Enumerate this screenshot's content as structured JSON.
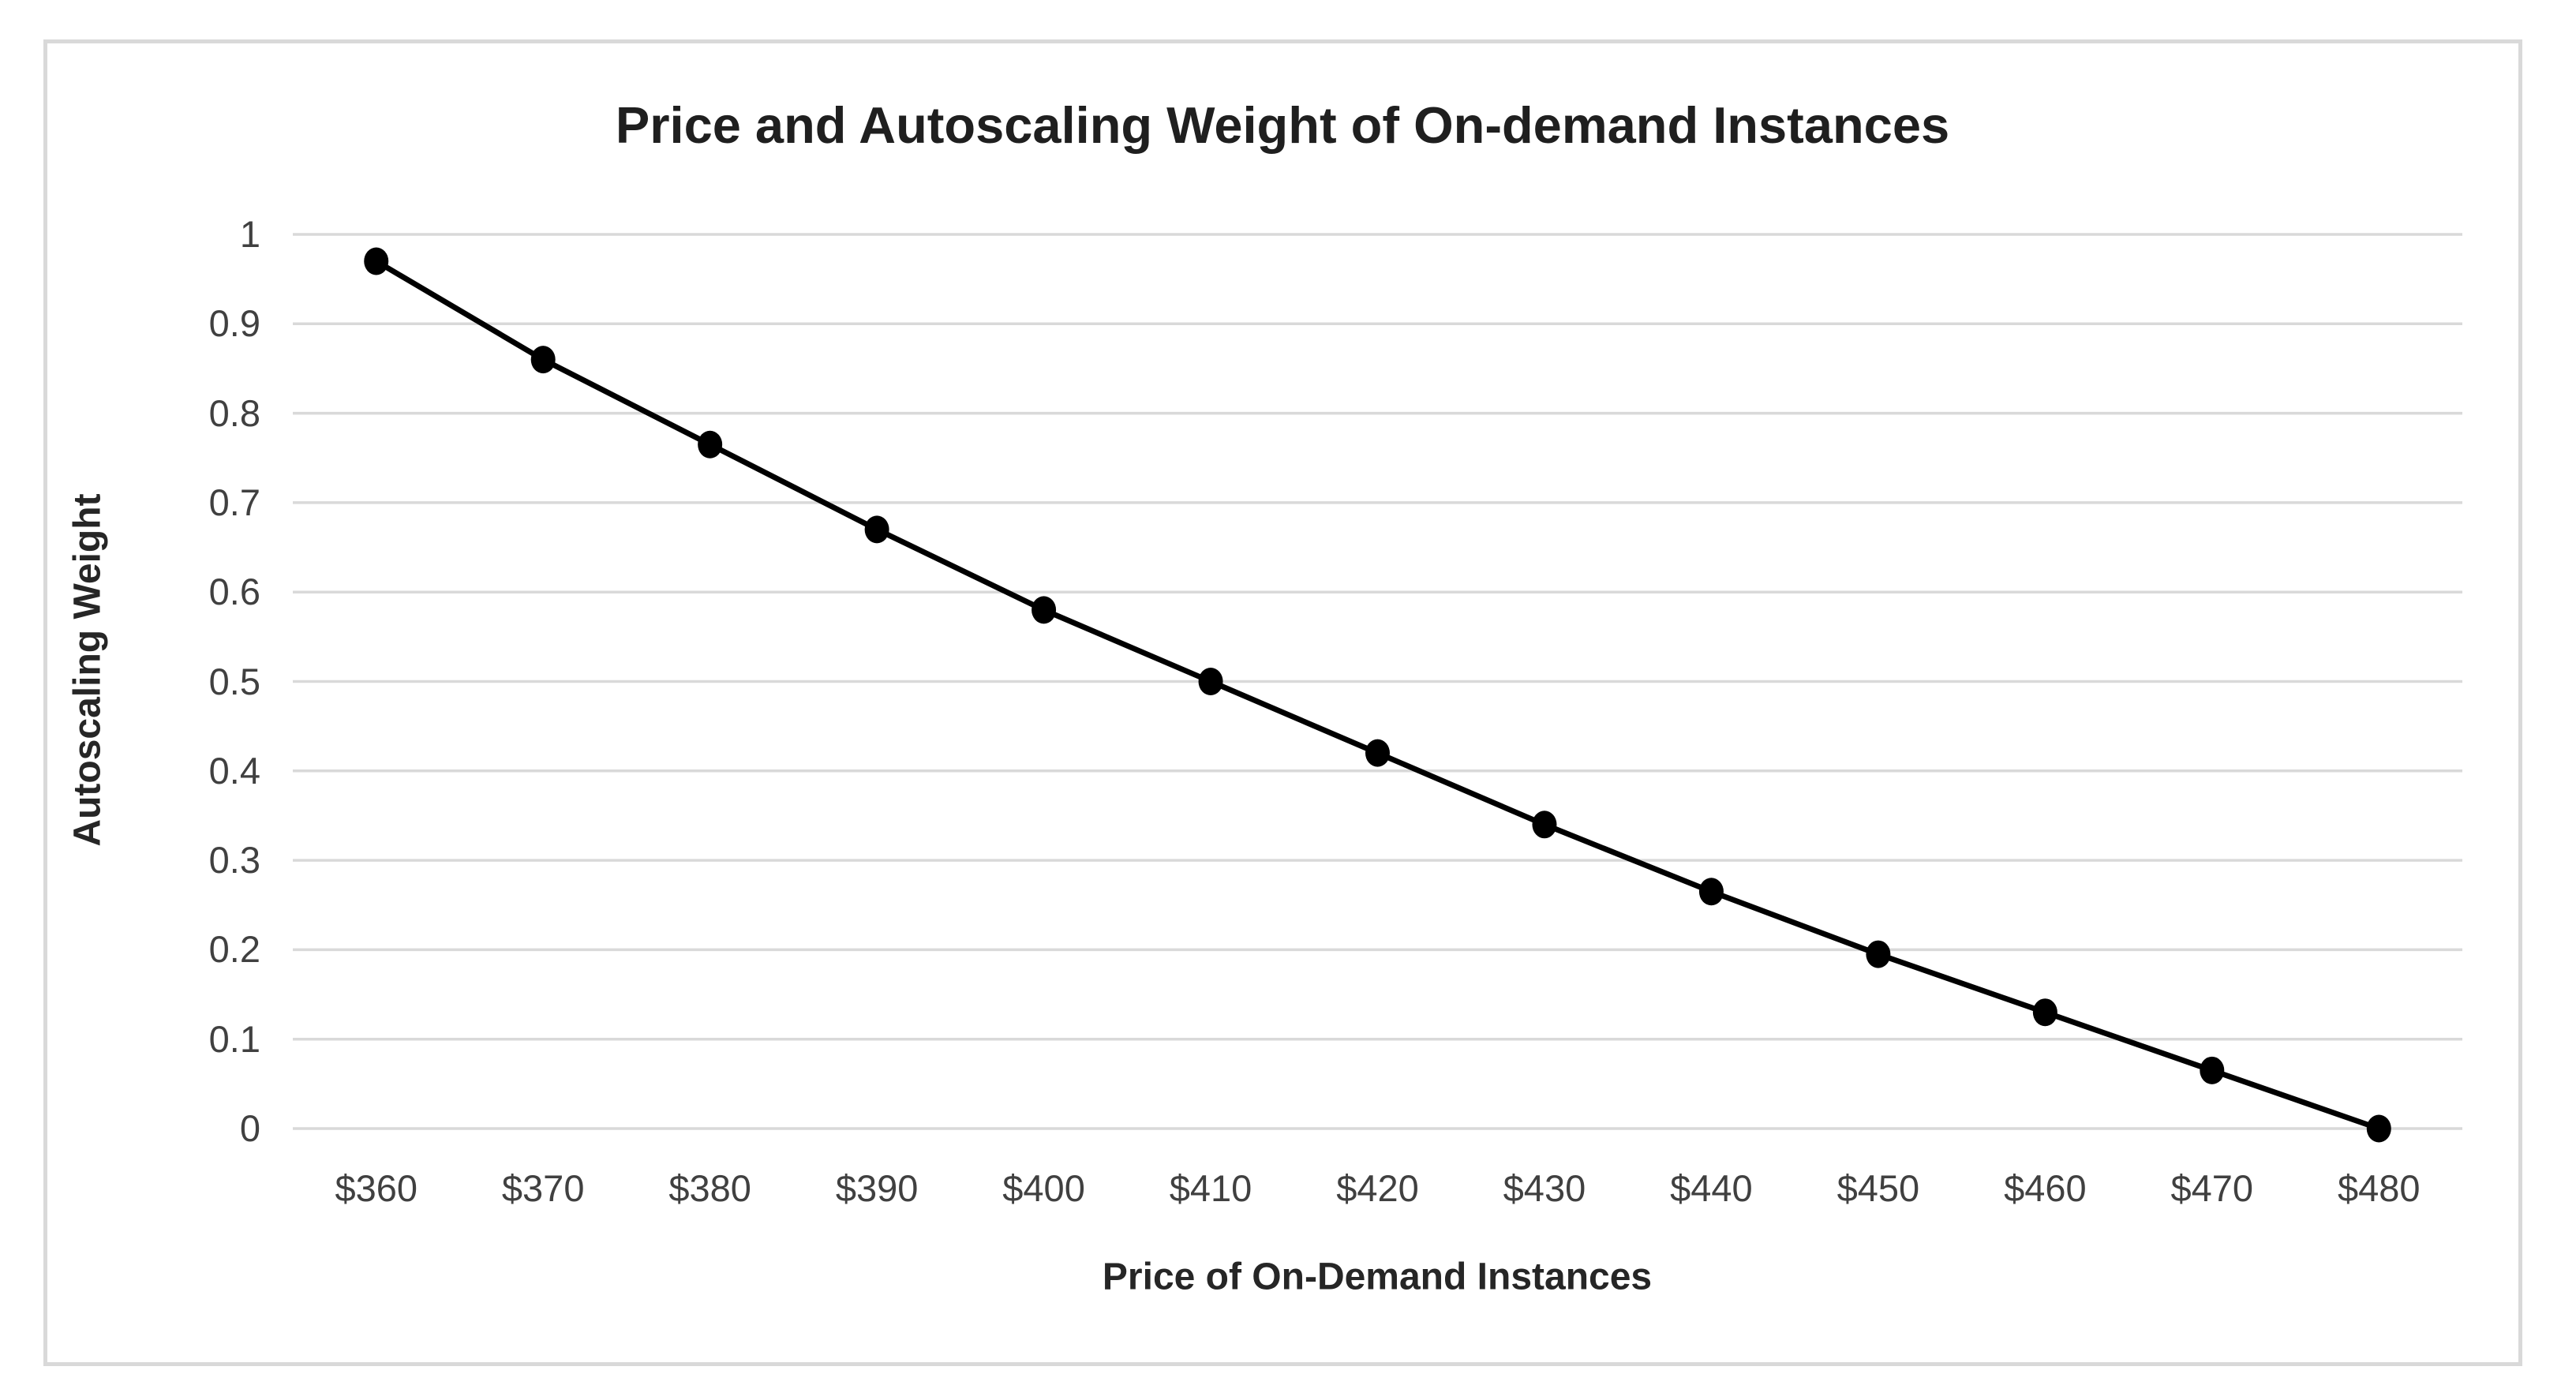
{
  "chart_data": {
    "type": "line",
    "title": "Price and Autoscaling Weight of On-demand Instances",
    "xlabel": "Price of On-Demand Instances",
    "ylabel": "Autoscaling Weight",
    "categories": [
      "$360",
      "$370",
      "$380",
      "$390",
      "$400",
      "$410",
      "$420",
      "$430",
      "$440",
      "$450",
      "$460",
      "$470",
      "$480"
    ],
    "x_numeric": [
      360,
      370,
      380,
      390,
      400,
      410,
      420,
      430,
      440,
      450,
      460,
      470,
      480
    ],
    "series": [
      {
        "name": "Autoscaling Weight",
        "values": [
          0.97,
          0.86,
          0.765,
          0.67,
          0.58,
          0.5,
          0.42,
          0.34,
          0.265,
          0.195,
          0.13,
          0.065,
          0
        ]
      }
    ],
    "y_ticks": [
      "1",
      "0.9",
      "0.8",
      "0.7",
      "0.6",
      "0.5",
      "0.4",
      "0.3",
      "0.2",
      "0.1",
      "0"
    ],
    "ylim": [
      0,
      1
    ],
    "grid": "horizontal",
    "legend": "none",
    "marker": "filled-circle"
  },
  "colors": {
    "line": "#000000",
    "marker": "#000000",
    "gridline": "#d9d9d9",
    "frame_border": "#d9d9d9",
    "title_text": "#1f1f1f",
    "axis_title_text": "#262626",
    "tick_text": "#404040"
  }
}
